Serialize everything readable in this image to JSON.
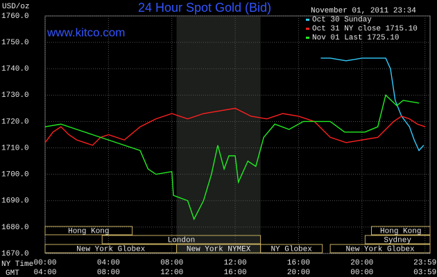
{
  "chart_data": {
    "type": "line",
    "title": "24 Hour Spot Gold (Bid)",
    "watermark": "www.kitco.com",
    "y_label": "USD/oz",
    "timestamp": "November 01, 2011 23:34",
    "x_label": "NY Time",
    "x2_label": "GMT",
    "xlim": [
      0,
      24.3
    ],
    "xticks": [
      {
        "value": 0,
        "label": "00:00"
      },
      {
        "value": 4,
        "label": "04:00"
      },
      {
        "value": 8,
        "label": "08:00"
      },
      {
        "value": 12,
        "label": "12:00"
      },
      {
        "value": 16,
        "label": "16:00"
      },
      {
        "value": 20,
        "label": "20:00"
      },
      {
        "value": 23.98,
        "label": "23:59"
      }
    ],
    "x2tick_labels": [
      "04:00",
      "08:00",
      "12:00",
      "16:00",
      "20:00",
      "00:00",
      "03:59"
    ],
    "ylim": [
      1670,
      1760
    ],
    "yticks": [
      {
        "value": 1670,
        "label": "1670.0"
      },
      {
        "value": 1680,
        "label": "1680.0"
      },
      {
        "value": 1690,
        "label": "1690.0"
      },
      {
        "value": 1700,
        "label": "1700.0"
      },
      {
        "value": 1710,
        "label": "1710.0"
      },
      {
        "value": 1720,
        "label": "1720.0"
      },
      {
        "value": 1730,
        "label": "1730.0"
      },
      {
        "value": 1740,
        "label": "1740.0"
      },
      {
        "value": 1750,
        "label": "1750.0"
      },
      {
        "value": 1760,
        "label": "1760.0"
      }
    ],
    "grid": true,
    "series": [
      {
        "name": "Oct 30 Sunday",
        "color": "#33ccff",
        "x": [
          17.4,
          18,
          19,
          20,
          21,
          21.5,
          21.8,
          22.1,
          22.5,
          23,
          23.3,
          23.6,
          23.9
        ],
        "values": [
          1744,
          1744,
          1743,
          1744,
          1744,
          1744,
          1740,
          1728,
          1722,
          1718,
          1713,
          1709,
          1711
        ]
      },
      {
        "name": "Oct 31 NY close 1715.10",
        "color": "#ff2020",
        "x": [
          0,
          0.5,
          1,
          1.5,
          2,
          2.5,
          3,
          3.5,
          4,
          5,
          6,
          7,
          8,
          9,
          10,
          11,
          12,
          13,
          14,
          15,
          16,
          17,
          18,
          19,
          20,
          21,
          22,
          22.5,
          23,
          23.5,
          24
        ],
        "values": [
          1712,
          1716,
          1718,
          1715,
          1713,
          1712,
          1711,
          1714,
          1715,
          1713,
          1718,
          1721,
          1723,
          1721,
          1723,
          1724,
          1725,
          1722,
          1721,
          1723,
          1722,
          1720,
          1714,
          1712,
          1713,
          1714,
          1720,
          1722,
          1721,
          1719,
          1718
        ]
      },
      {
        "name": "Nov 01 Last 1725.10",
        "color": "#22ee22",
        "x": [
          0,
          1,
          2,
          3,
          4,
          5,
          6,
          6.5,
          7,
          8,
          8.1,
          9,
          9.4,
          10,
          10.5,
          10.9,
          11.3,
          11.6,
          12,
          12.2,
          12.8,
          13.3,
          13.8,
          14.5,
          15.4,
          16.3,
          18,
          18.9,
          20.2,
          21,
          21.5,
          22.2,
          22.6,
          23.6
        ],
        "values": [
          1718,
          1719,
          1717,
          1715,
          1713,
          1711,
          1709,
          1702,
          1700,
          1701,
          1692,
          1690,
          1683,
          1690,
          1700,
          1711,
          1702,
          1707,
          1707,
          1697,
          1705,
          1703,
          1714,
          1719,
          1717,
          1720,
          1720,
          1716,
          1716,
          1718,
          1730,
          1726,
          1728,
          1727
        ]
      }
    ],
    "session_rows": [
      [
        {
          "label": "Hong Kong",
          "start": 0,
          "end": 5.5
        },
        {
          "label": "Hong Kong",
          "start": 20.6,
          "end": 24.3
        }
      ],
      [
        {
          "label": "London",
          "start": 3.6,
          "end": 13.6
        },
        {
          "label": "Sydney",
          "start": 20.2,
          "end": 24.3
        }
      ],
      [
        {
          "label": "New York Globex",
          "start": 0,
          "end": 8.3
        },
        {
          "label": "New York NYMEX",
          "start": 8.3,
          "end": 13.6
        },
        {
          "label": "NY Globex",
          "start": 13.6,
          "end": 17.5
        },
        {
          "label": "New York Globex",
          "start": 18,
          "end": 24.3
        }
      ]
    ]
  }
}
